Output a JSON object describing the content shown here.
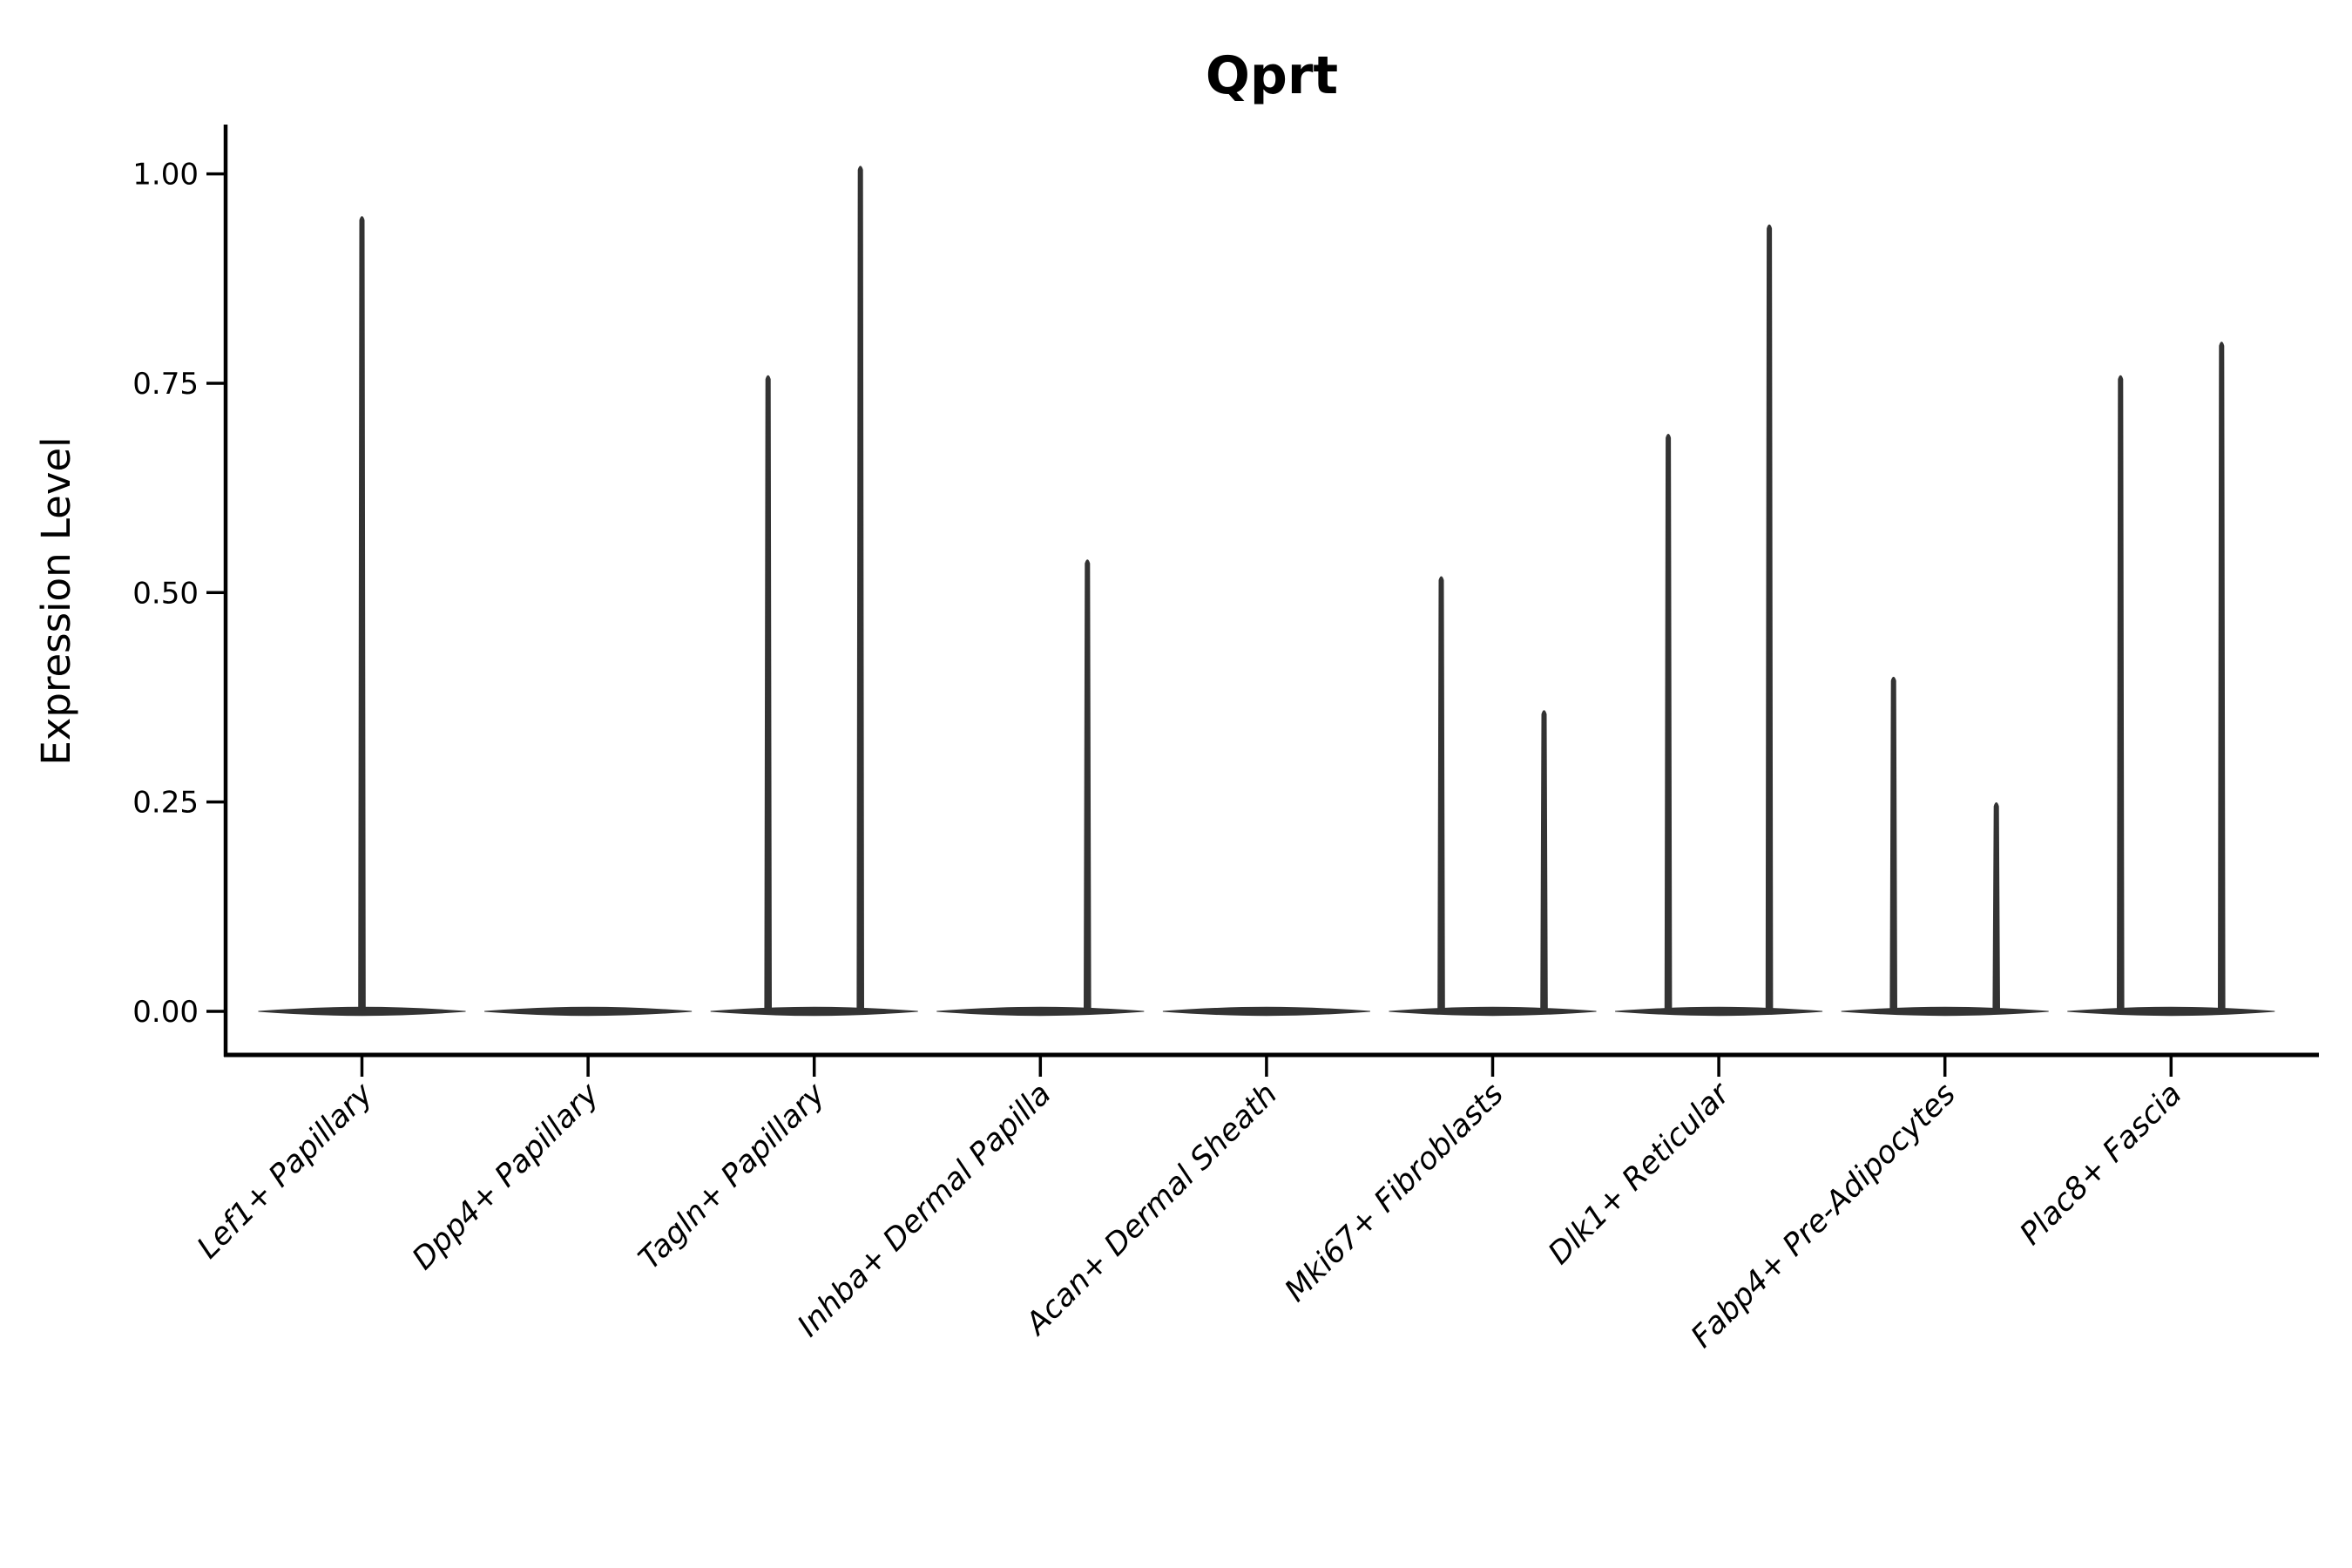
{
  "chart_data": {
    "type": "violin",
    "title": "Qprt",
    "ylabel": "Expression Level",
    "xlabel": "",
    "ylim": [
      0,
      1.05
    ],
    "ytick_labels": [
      "0.00",
      "0.25",
      "0.50",
      "0.75",
      "1.00"
    ],
    "ytick_values": [
      0,
      0.25,
      0.5,
      0.75,
      1.0
    ],
    "grid": false,
    "legend": "none",
    "x_tick_rotation_deg": 45,
    "categories": [
      "Lef1+ Papillary",
      "Dpp4+ Papillary",
      "Tagln+ Papillary",
      "Inhba+ Dermal Papilla",
      "Acan+ Dermal Sheath",
      "Mki67+ Fibroblasts",
      "Dlk1+ Reticular",
      "Fabp4+ Pre-Adipocytes",
      "Plac8+ Fascia"
    ],
    "violins": [
      {
        "category": "Lef1+ Papillary",
        "spikes": [
          {
            "dx": 0,
            "max": 0.95
          }
        ]
      },
      {
        "category": "Dpp4+ Papillary",
        "spikes": []
      },
      {
        "category": "Tagln+ Papillary",
        "spikes": [
          {
            "dx": -53,
            "max": 0.76
          },
          {
            "dx": 53,
            "max": 1.01
          }
        ]
      },
      {
        "category": "Inhba+ Dermal Papilla",
        "spikes": [
          {
            "dx": 54,
            "max": 0.54
          }
        ]
      },
      {
        "category": "Acan+ Dermal Sheath",
        "spikes": []
      },
      {
        "category": "Mki67+ Fibroblasts",
        "spikes": [
          {
            "dx": -59,
            "max": 0.52
          },
          {
            "dx": 59,
            "max": 0.36
          }
        ]
      },
      {
        "category": "Dlk1+ Reticular",
        "spikes": [
          {
            "dx": -58,
            "max": 0.69
          },
          {
            "dx": 58,
            "max": 0.94
          }
        ]
      },
      {
        "category": "Fabp4+ Pre-Adipocytes",
        "spikes": [
          {
            "dx": -59,
            "max": 0.4
          },
          {
            "dx": 59,
            "max": 0.25
          }
        ]
      },
      {
        "category": "Plac8+ Fascia",
        "spikes": [
          {
            "dx": -58,
            "max": 0.76
          },
          {
            "dx": 58,
            "max": 0.8
          }
        ]
      }
    ],
    "baseline_value": 0.0,
    "colors": {
      "violin": "#333333",
      "axis": "#000000",
      "text": "#000000",
      "background": "#ffffff"
    }
  }
}
